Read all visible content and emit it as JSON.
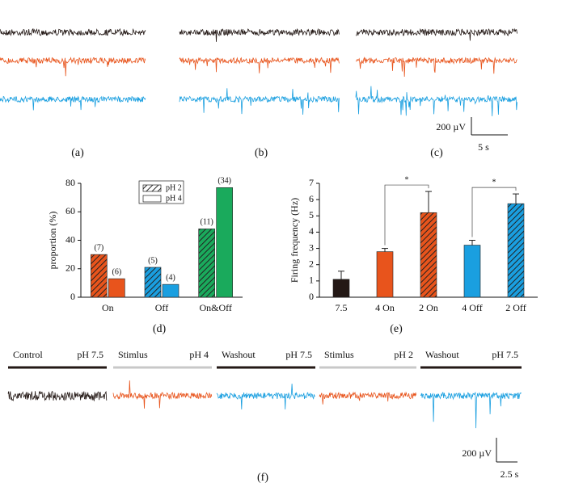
{
  "panel_labels": [
    "(a)",
    "(b)",
    "(c)",
    "(d)",
    "(e)",
    "(f)"
  ],
  "scale_bars": [
    {
      "amplitude": "200 µV",
      "time": "5 s"
    },
    {
      "amplitude": "200 µV",
      "time": "2.5 s"
    }
  ],
  "protocol": [
    {
      "condition": "Control",
      "ph": "pH 7.5"
    },
    {
      "condition": "Stimlus",
      "ph": "pH 4"
    },
    {
      "condition": "Washout",
      "ph": "pH 7.5"
    },
    {
      "condition": "Stimlus",
      "ph": "pH 2"
    },
    {
      "condition": "Washout",
      "ph": "pH 7.5"
    }
  ],
  "chart_data": [
    {
      "type": "bar",
      "ylabel": "proportion (%)",
      "categories": [
        "On",
        "Off",
        "On&Off"
      ],
      "colors": [
        "#e8541c",
        "#1a9fe0",
        "#1aaa5c"
      ],
      "series": [
        {
          "name": "pH 2",
          "pattern": "hatch",
          "values": [
            30,
            21,
            48
          ],
          "n_labels": [
            "(7)",
            "(5)",
            "(11)"
          ]
        },
        {
          "name": "pH 4",
          "pattern": "solid",
          "values": [
            13,
            9,
            77
          ],
          "n_labels": [
            "(6)",
            "(4)",
            "(34)"
          ]
        }
      ],
      "ylim": [
        0,
        80
      ],
      "yticks": [
        0,
        20,
        40,
        60,
        80
      ]
    },
    {
      "type": "errorbar",
      "ylabel": "Firing frequency (Hz)",
      "categories": [
        "7.5",
        "4 On",
        "2 On",
        "4 Off",
        "2 Off"
      ],
      "values": [
        1.1,
        2.8,
        5.2,
        3.2,
        5.75
      ],
      "errors": [
        0.5,
        0.2,
        1.3,
        0.3,
        0.6
      ],
      "colors": [
        "#231815",
        "#e8541c",
        "#e8541c",
        "#1a9fe0",
        "#1a9fe0"
      ],
      "hatched": [
        false,
        false,
        true,
        false,
        true
      ],
      "significance": [
        {
          "pair": [
            1,
            2
          ],
          "label": "*"
        },
        {
          "pair": [
            3,
            4
          ],
          "label": "*"
        }
      ],
      "ylim": [
        0,
        7
      ],
      "yticks": [
        0,
        1,
        2,
        3,
        4,
        5,
        6,
        7
      ]
    }
  ]
}
